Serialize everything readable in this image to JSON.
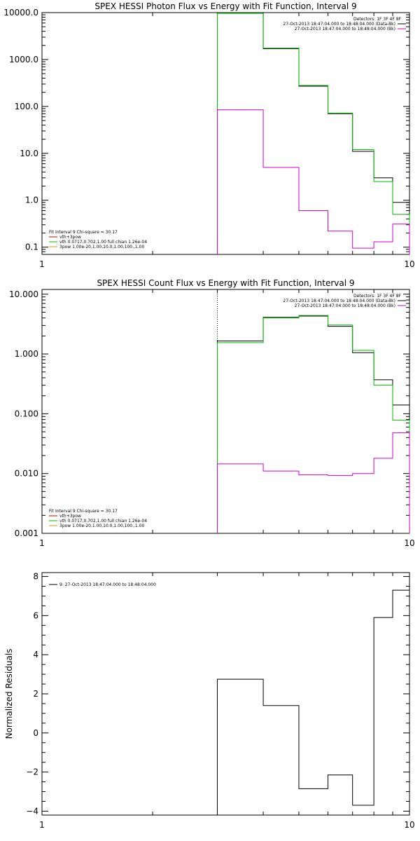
{
  "chart_data": [
    {
      "type": "line",
      "title": "SPEX HESSI Photon Flux vs Energy with Fit Function, Interval 9",
      "x_scale": "log",
      "y_scale": "log",
      "xlim": [
        1,
        10
      ],
      "ylim": [
        0.07,
        10000
      ],
      "x_ticks": [
        "1",
        "10"
      ],
      "y_ticks": [
        "0.1",
        "1.0",
        "10.0",
        "100.0",
        "1000.0",
        "10000.0"
      ],
      "y_tick_values": [
        0.1,
        1,
        10,
        100,
        1000,
        10000
      ],
      "x_edges": [
        3.0,
        4.0,
        5.0,
        6.0,
        7.0,
        8.0,
        9.0,
        10.0
      ],
      "vline_x": 3.0,
      "legend_top": {
        "header": "Detectors: 1F 3F 4F 8F",
        "entries": [
          {
            "text": "27-Oct-2013 18:47:04.000 to 18:48:04.000 (Data-Bk)",
            "color": "#000000"
          },
          {
            "text": "27-Oct-2013 18:47:04.000 to 18:48:04.000 (Bk)",
            "color": "#d000d0"
          }
        ]
      },
      "legend_bottom": {
        "header": "Fit Interval 9   Chi-square = 30.17",
        "entries": [
          {
            "text": "vth+3pow",
            "color": "#d00000"
          },
          {
            "text": "vth 0.0717,0.702,1.00  full chian 1.26e-04",
            "color": "#00c000"
          },
          {
            "text": "3pow 1.00e-20,1.00,10.0,1.00,100.,1.00",
            "color": "#d0a000"
          }
        ]
      },
      "series": [
        {
          "color": "#000000",
          "values": [
            10000,
            1700,
            270,
            70,
            11,
            3.0,
            0.9
          ]
        },
        {
          "color": "#00c000",
          "values": [
            9600,
            1750,
            280,
            72,
            12,
            2.5,
            0.5
          ]
        },
        {
          "color": "#d000d0",
          "values": [
            85,
            5.0,
            0.6,
            0.22,
            0.095,
            0.13,
            0.31
          ]
        }
      ]
    },
    {
      "type": "line",
      "title": "SPEX HESSI Count Flux vs Energy with Fit Function, Interval 9",
      "x_scale": "log",
      "y_scale": "log",
      "xlim": [
        1,
        10
      ],
      "ylim": [
        0.001,
        12
      ],
      "x_ticks": [
        "1",
        "10"
      ],
      "y_ticks": [
        "0.001",
        "0.010",
        "0.100",
        "1.000",
        "10.000"
      ],
      "y_tick_values": [
        0.001,
        0.01,
        0.1,
        1,
        10
      ],
      "x_edges": [
        3.0,
        4.0,
        5.0,
        6.0,
        7.0,
        8.0,
        9.0,
        10.0
      ],
      "vline_x": 3.0,
      "legend_top": {
        "header": "Detectors: 1F 3F 4F 8F",
        "entries": [
          {
            "text": "27-Oct-2013 18:47:04.000 to 18:48:04.000 (Data-Bk)",
            "color": "#000000"
          },
          {
            "text": "27-Oct-2013 18:47:04.000 to 18:48:04.000 (Bk)",
            "color": "#d000d0"
          }
        ]
      },
      "legend_bottom": {
        "header": "Fit Interval 9   Chi-square = 30.17",
        "entries": [
          {
            "text": "vth+3pow",
            "color": "#d00000"
          },
          {
            "text": "vth 0.0717,0.702,1.00  full chian 1.26e-04",
            "color": "#00c000"
          },
          {
            "text": "3pow 1.00e-20,1.00,10.0,1.00,100.,1.00",
            "color": "#d0a000"
          }
        ]
      },
      "series": [
        {
          "color": "#000000",
          "values": [
            1.65,
            4.1,
            4.3,
            2.9,
            1.05,
            0.37,
            0.14
          ]
        },
        {
          "color": "#00c000",
          "values": [
            1.55,
            4.0,
            4.4,
            3.05,
            1.15,
            0.3,
            0.078
          ]
        },
        {
          "color": "#d000d0",
          "values": [
            0.0145,
            0.011,
            0.0095,
            0.0093,
            0.01,
            0.018,
            0.048
          ]
        }
      ]
    },
    {
      "type": "line",
      "title": "",
      "ylabel": "Normalized Residuals",
      "x_scale": "log",
      "y_scale": "linear",
      "xlim": [
        1,
        10
      ],
      "ylim": [
        -4.2,
        8.2
      ],
      "x_ticks": [
        "1",
        "10"
      ],
      "y_ticks": [
        "−4",
        "−2",
        "0",
        "2",
        "4",
        "6",
        "8"
      ],
      "y_tick_values": [
        -4,
        -2,
        0,
        2,
        4,
        6,
        8
      ],
      "x_edges": [
        3.0,
        4.0,
        5.0,
        6.0,
        7.0,
        8.0,
        9.0,
        10.0
      ],
      "legend_top": {
        "entries": [
          {
            "text": "9: 27-Oct-2013 18:47:04.000 to 18:48:04.000",
            "color": "#000000"
          }
        ]
      },
      "series": [
        {
          "color": "#000000",
          "values": [
            2.75,
            1.4,
            -2.85,
            -2.15,
            -3.7,
            5.9,
            7.3
          ]
        }
      ]
    }
  ]
}
